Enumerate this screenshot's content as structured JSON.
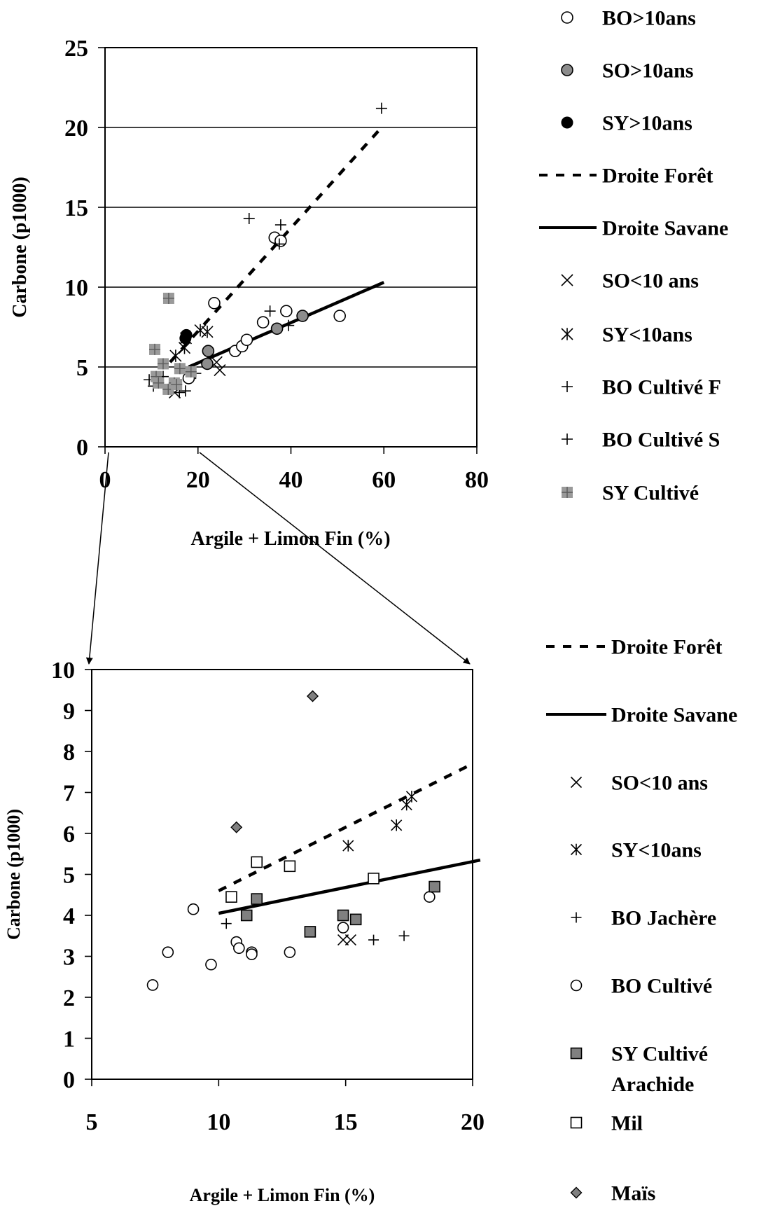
{
  "chart_data": [
    {
      "type": "scatter",
      "title": "",
      "xlabel": "Argile + Limon Fin (%)",
      "ylabel": "Carbone (p1000)",
      "xlim": [
        0,
        80
      ],
      "ylim": [
        0,
        25
      ],
      "x_ticks": [
        "0",
        "20",
        "40",
        "60",
        "80"
      ],
      "y_ticks": [
        "0",
        "5",
        "10",
        "15",
        "20",
        "25"
      ],
      "grid": "horizontal",
      "legend_position": "right",
      "legend": [
        {
          "label": "BO>10ans",
          "marker": "open-circle"
        },
        {
          "label": "SO>10ans",
          "marker": "grey-circle"
        },
        {
          "label": "SY>10ans",
          "marker": "black-circle"
        },
        {
          "label": "Droite Forêt",
          "marker": "dashed-line"
        },
        {
          "label": "Droite Savane",
          "marker": "solid-line"
        },
        {
          "label": "SO<10 ans",
          "marker": "x"
        },
        {
          "label": "SY<10ans",
          "marker": "asterisk"
        },
        {
          "label": "BO Cultivé F",
          "marker": "plus"
        },
        {
          "label": "BO Cultivé S",
          "marker": "plus"
        },
        {
          "label": "SY Cultivé",
          "marker": "grey-square-plus"
        }
      ],
      "series": [
        {
          "name": "BO>10ans",
          "marker": "open-circle",
          "x": [
            23.5,
            36.5,
            37.8,
            18,
            28,
            29.5,
            30.5,
            34,
            39,
            50.5
          ],
          "y": [
            9,
            13.1,
            12.9,
            4.3,
            6,
            6.3,
            6.7,
            7.8,
            8.5,
            8.2
          ]
        },
        {
          "name": "SO>10ans",
          "marker": "grey-circle",
          "x": [
            22.2,
            22,
            37,
            42.5
          ],
          "y": [
            6,
            5.2,
            7.4,
            8.2
          ]
        },
        {
          "name": "SY>10ans",
          "marker": "black-circle",
          "x": [
            17.5,
            17.3
          ],
          "y": [
            7,
            6.8
          ]
        },
        {
          "name": "SO<10 ans",
          "marker": "x",
          "x": [
            15,
            24.7,
            24
          ],
          "y": [
            3.4,
            4.8,
            5.3
          ]
        },
        {
          "name": "SY<10ans",
          "marker": "asterisk",
          "x": [
            15.2,
            17.1,
            17.4,
            20.5,
            22
          ],
          "y": [
            5.7,
            6.2,
            6.8,
            7.3,
            7.2
          ]
        },
        {
          "name": "BO Cultivé F",
          "marker": "plus",
          "x": [
            59.5,
            31,
            37.8,
            37.5,
            35.5,
            39.5
          ],
          "y": [
            21.2,
            14.3,
            13.9,
            12.7,
            8.5,
            7.6
          ]
        },
        {
          "name": "BO Cultivé S",
          "marker": "plus",
          "x": [
            9.5,
            10.4,
            16,
            17.3,
            19.5,
            12.5
          ],
          "y": [
            4.2,
            3.8,
            3.4,
            3.5,
            4.6,
            4.4
          ]
        },
        {
          "name": "SY Cultivé",
          "marker": "grey-square-plus",
          "x": [
            13.7,
            10.7,
            11,
            11.5,
            12.5,
            13.6,
            14.9,
            15.4,
            16.1,
            18.5
          ],
          "y": [
            9.3,
            6.1,
            4.4,
            4,
            5.2,
            3.6,
            4,
            3.9,
            4.9,
            4.7
          ]
        }
      ],
      "lines": [
        {
          "name": "Droite Forêt",
          "style": "dashed",
          "x": [
            14,
            59.5
          ],
          "y": [
            5.3,
            20
          ]
        },
        {
          "name": "Droite Savane",
          "style": "solid",
          "x": [
            18,
            60
          ],
          "y": [
            5,
            10.3
          ]
        }
      ]
    },
    {
      "type": "scatter",
      "title": "",
      "xlabel": "Argile + Limon Fin (%)",
      "ylabel": "Carbone (p1000)",
      "xlim": [
        5,
        20
      ],
      "ylim": [
        0,
        10
      ],
      "x_ticks": [
        "5",
        "10",
        "15",
        "20"
      ],
      "y_ticks": [
        "0",
        "1",
        "2",
        "3",
        "4",
        "5",
        "6",
        "7",
        "8",
        "9",
        "10"
      ],
      "grid": "none",
      "legend_position": "right",
      "legend": [
        {
          "label": "Droite Forêt",
          "marker": "dashed-line"
        },
        {
          "label": "Droite Savane",
          "marker": "solid-line"
        },
        {
          "label": "SO<10 ans",
          "marker": "x"
        },
        {
          "label": "SY<10ans",
          "marker": "asterisk"
        },
        {
          "label": "BO Jachère",
          "marker": "plus"
        },
        {
          "label": "BO Cultivé",
          "marker": "open-circle"
        },
        {
          "label": "SY Cultivé\nArachide",
          "marker": "grey-square"
        },
        {
          "label": "Mil",
          "marker": "open-square"
        },
        {
          "label": "Maïs",
          "marker": "grey-diamond"
        }
      ],
      "series": [
        {
          "name": "SO<10 ans",
          "marker": "x",
          "x": [
            14.9,
            15.2
          ],
          "y": [
            3.4,
            3.4
          ]
        },
        {
          "name": "SY<10ans",
          "marker": "asterisk",
          "x": [
            15.1,
            17,
            17.4,
            17.6
          ],
          "y": [
            5.7,
            6.2,
            6.7,
            6.9
          ]
        },
        {
          "name": "BO Jachère",
          "marker": "plus",
          "x": [
            10.3,
            16.1,
            17.3
          ],
          "y": [
            3.8,
            3.4,
            3.5
          ]
        },
        {
          "name": "BO Cultivé",
          "marker": "open-circle",
          "x": [
            7.4,
            8,
            9,
            9.7,
            10.7,
            10.8,
            11.3,
            11.3,
            12.8,
            14.9,
            18.3
          ],
          "y": [
            2.3,
            3.1,
            4.15,
            2.8,
            3.35,
            3.2,
            3.1,
            3.05,
            3.1,
            3.7,
            4.45
          ]
        },
        {
          "name": "SY Cultivé Arachide",
          "marker": "grey-square",
          "x": [
            11.1,
            11.5,
            13.6,
            14.9,
            15.4,
            18.5
          ],
          "y": [
            4,
            4.4,
            3.6,
            4,
            3.9,
            4.7
          ]
        },
        {
          "name": "Mil",
          "marker": "open-square",
          "x": [
            10.5,
            11.5,
            12.8,
            16.1
          ],
          "y": [
            4.45,
            5.3,
            5.2,
            4.9
          ]
        },
        {
          "name": "Maïs",
          "marker": "grey-diamond",
          "x": [
            10.7,
            13.7
          ],
          "y": [
            6.15,
            9.35
          ]
        }
      ],
      "lines": [
        {
          "name": "Droite Forêt",
          "style": "dashed",
          "x": [
            10,
            20
          ],
          "y": [
            4.6,
            7.7
          ]
        },
        {
          "name": "Droite Savane",
          "style": "solid",
          "x": [
            10,
            20.3
          ],
          "y": [
            4.05,
            5.35
          ]
        }
      ]
    }
  ]
}
